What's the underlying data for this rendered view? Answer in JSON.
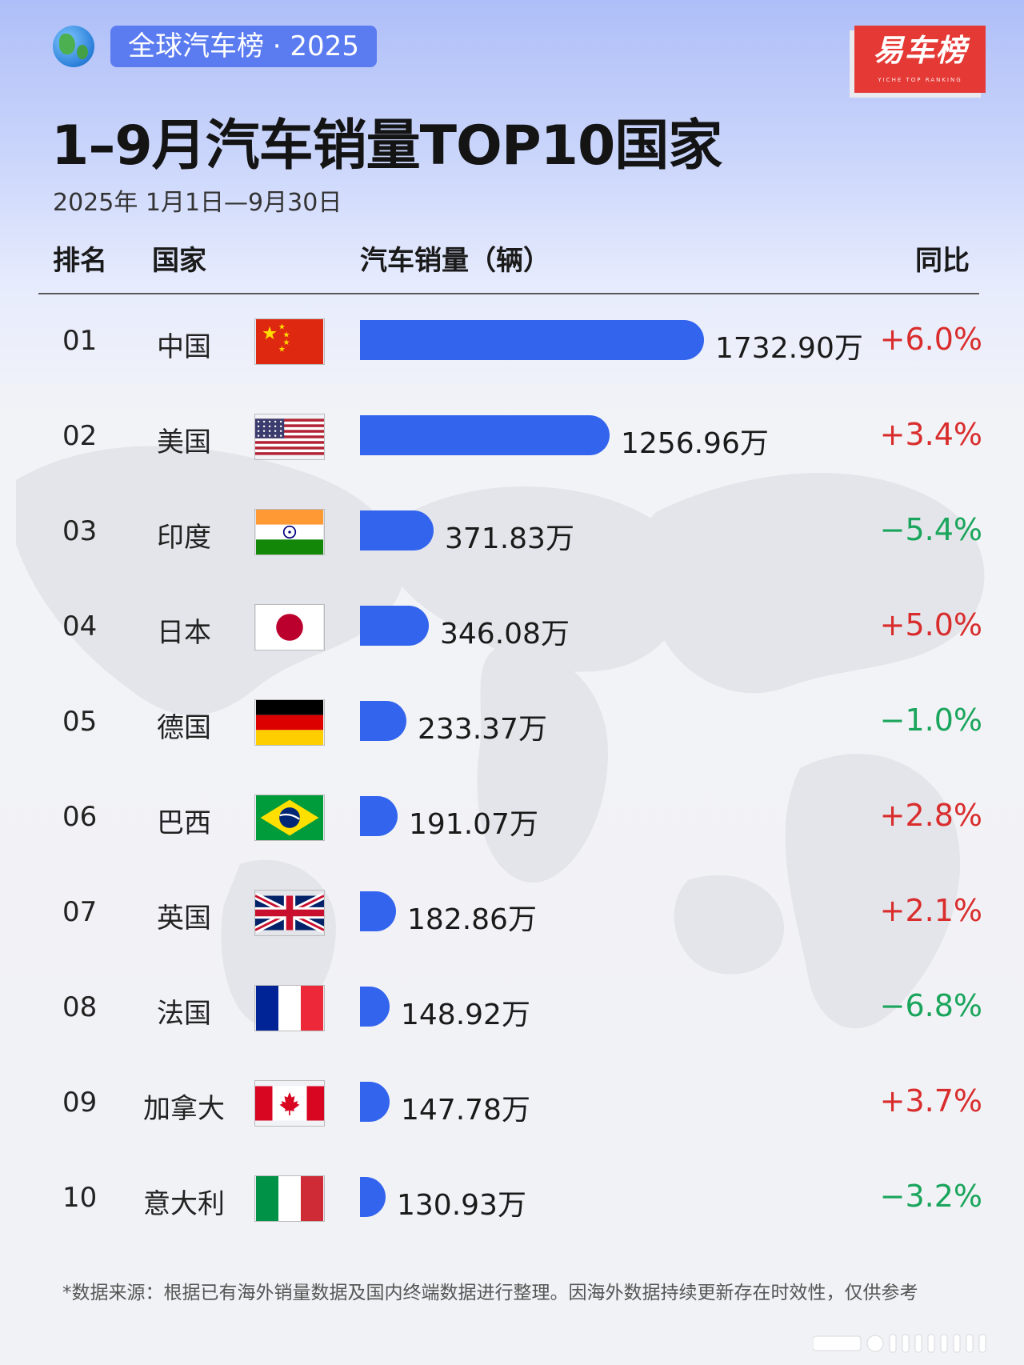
{
  "header": {
    "tag": "全球汽车榜 · 2025",
    "brand": "易车榜",
    "brand_sub": "YICHE TOP RANKING",
    "title": "1–9月汽车销量TOP10国家",
    "subtitle": "2025年 1月1日—9月30日"
  },
  "table_header": {
    "rank": "排名",
    "country": "国家",
    "sales": "汽车销量（辆）",
    "yoy": "同比"
  },
  "chart_data": {
    "type": "bar",
    "unit": "万",
    "categories": [
      "中国",
      "美国",
      "印度",
      "日本",
      "德国",
      "巴西",
      "英国",
      "法国",
      "加拿大",
      "意大利"
    ],
    "series": [
      {
        "values": [
          1732.9,
          1256.96,
          371.83,
          346.08,
          233.37,
          191.07,
          182.86,
          148.92,
          147.78,
          130.93
        ]
      }
    ],
    "rows": [
      {
        "rank": "01",
        "country": "中国",
        "flag": "china-flag",
        "value": 1732.9,
        "value_label": "1732.90万",
        "yoy": "+6.0%",
        "trend": "up"
      },
      {
        "rank": "02",
        "country": "美国",
        "flag": "usa-flag",
        "value": 1256.96,
        "value_label": "1256.96万",
        "yoy": "+3.4%",
        "trend": "up"
      },
      {
        "rank": "03",
        "country": "印度",
        "flag": "india-flag",
        "value": 371.83,
        "value_label": "371.83万",
        "yoy": "−5.4%",
        "trend": "down"
      },
      {
        "rank": "04",
        "country": "日本",
        "flag": "japan-flag",
        "value": 346.08,
        "value_label": "346.08万",
        "yoy": "+5.0%",
        "trend": "up"
      },
      {
        "rank": "05",
        "country": "德国",
        "flag": "germany-flag",
        "value": 233.37,
        "value_label": "233.37万",
        "yoy": "−1.0%",
        "trend": "down"
      },
      {
        "rank": "06",
        "country": "巴西",
        "flag": "brazil-flag",
        "value": 191.07,
        "value_label": "191.07万",
        "yoy": "+2.8%",
        "trend": "up"
      },
      {
        "rank": "07",
        "country": "英国",
        "flag": "uk-flag",
        "value": 182.86,
        "value_label": "182.86万",
        "yoy": "+2.1%",
        "trend": "up"
      },
      {
        "rank": "08",
        "country": "法国",
        "flag": "france-flag",
        "value": 148.92,
        "value_label": "148.92万",
        "yoy": "−6.8%",
        "trend": "down"
      },
      {
        "rank": "09",
        "country": "加拿大",
        "flag": "canada-flag",
        "value": 147.78,
        "value_label": "147.78万",
        "yoy": "+3.7%",
        "trend": "up"
      },
      {
        "rank": "10",
        "country": "意大利",
        "flag": "italy-flag",
        "value": 130.93,
        "value_label": "130.93万",
        "yoy": "−3.2%",
        "trend": "down"
      }
    ]
  },
  "footnote": "*数据来源：根据已有海外销量数据及国内终端数据进行整理。因海外数据持续更新存在时效性，仅供参考",
  "colors": {
    "bar": "#3264ee",
    "positive": "#d92d2d",
    "negative": "#1aa55c",
    "brand": "#e53935",
    "tag": "#5b7cf0"
  }
}
